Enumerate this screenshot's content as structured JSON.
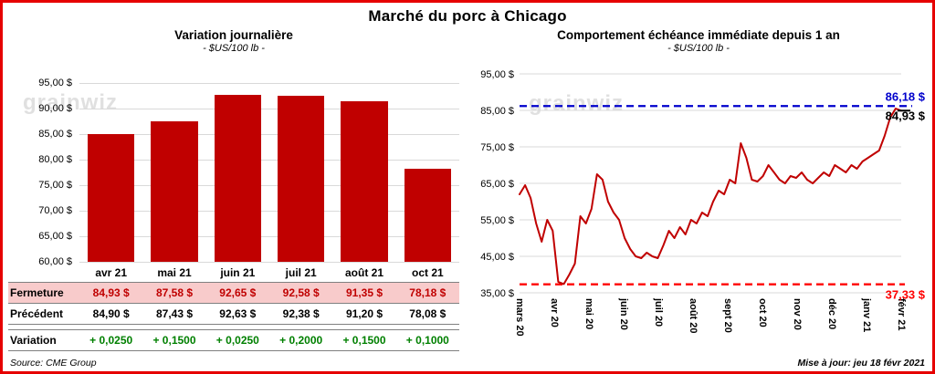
{
  "page": {
    "title": "Marché du porc à Chicago",
    "source": "Source: CME Group",
    "updated": "Mise à jour: jeu 18 févr 2021",
    "watermark": "grainwiz"
  },
  "chart_data": [
    {
      "type": "bar",
      "title": "Variation  journalière",
      "subtitle": "- $US/100 lb -",
      "categories": [
        "avr 21",
        "mai 21",
        "juin 21",
        "juil 21",
        "août 21",
        "oct 21"
      ],
      "values": [
        84.93,
        87.58,
        92.65,
        92.58,
        91.35,
        78.18
      ],
      "ylim": [
        60,
        95
      ],
      "ytick_step": 5,
      "ytick_labels": [
        "95,00 $",
        "90,00 $",
        "85,00 $",
        "80,00 $",
        "75,00 $",
        "70,00 $",
        "65,00 $",
        "60,00 $"
      ],
      "bar_color": "#c00000",
      "grid": true,
      "legend": "none",
      "table": {
        "rows": [
          {
            "label": "Fermeture",
            "style": "close",
            "values": [
              "84,93  $",
              "87,58  $",
              "92,65  $",
              "92,58  $",
              "91,35  $",
              "78,18  $"
            ]
          },
          {
            "label": "Précédent",
            "style": "previous",
            "values": [
              "84,90  $",
              "87,43  $",
              "92,63  $",
              "92,38  $",
              "91,20  $",
              "78,08  $"
            ]
          },
          {
            "label": "Variation",
            "style": "variation",
            "values": [
              "+ 0,0250",
              "+ 0,1500",
              "+ 0,0250",
              "+ 0,2000",
              "+ 0,1500",
              "+ 0,1000"
            ]
          }
        ]
      }
    },
    {
      "type": "line",
      "title": "Comportement  échéance immédiate depuis 1 an",
      "subtitle": "- $US/100 lb -",
      "x_labels": [
        "mars 20",
        "avr 20",
        "mai 20",
        "juin 20",
        "juil 20",
        "août 20",
        "sept 20",
        "oct 20",
        "nov 20",
        "déc 20",
        "janv 21",
        "févr 21"
      ],
      "values": [
        62,
        64.5,
        61,
        54,
        49,
        55,
        52,
        38,
        37.4,
        40,
        43,
        56,
        54,
        58,
        67.5,
        66,
        60,
        57,
        55,
        50,
        47,
        45,
        44.5,
        46,
        45,
        44.5,
        48,
        52,
        50,
        53,
        51,
        55,
        54,
        57,
        56,
        60,
        63,
        62,
        66,
        65,
        76,
        72,
        66,
        65.5,
        67,
        70,
        68,
        66,
        65,
        67,
        66.5,
        68,
        66,
        65,
        66.5,
        68,
        67,
        70,
        69,
        68,
        70,
        69,
        71,
        72,
        73,
        74,
        78,
        83,
        85.5,
        84.93
      ],
      "ylim": [
        35,
        95
      ],
      "ytick_step": 10,
      "ytick_labels": [
        "95,00 $",
        "85,00 $",
        "75,00 $",
        "65,00 $",
        "55,00 $",
        "45,00 $",
        "35,00 $"
      ],
      "line_color": "#c00000",
      "grid": true,
      "legend": "none",
      "high_line": {
        "value": 86.18,
        "label": "86,18 $",
        "color": "#0000cc"
      },
      "last_point": {
        "value": 84.93,
        "label": "84,93 $",
        "color": "#000000"
      },
      "low_line": {
        "value": 37.33,
        "label": "37,33 $",
        "color": "#ff0000"
      }
    }
  ]
}
